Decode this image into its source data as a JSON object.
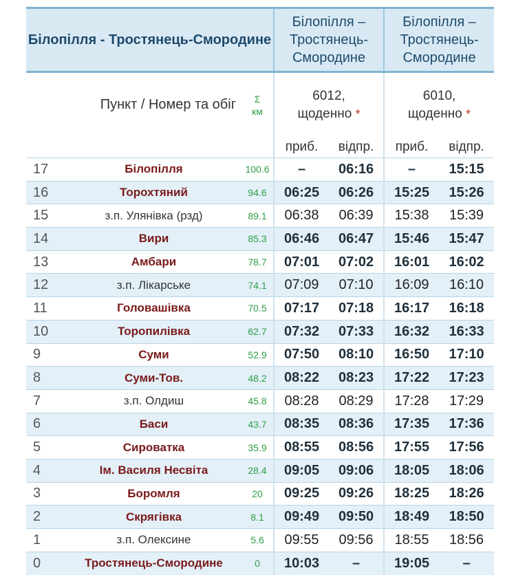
{
  "header": {
    "route": "Білопілля - Тростянець-Смородине",
    "dir1": "Білопілля – Тростянець-Смородине",
    "dir2": "Білопілля – Тростянець-Смородине",
    "punkt": "Пункт / Номер та обіг",
    "sum_symbol": "Σ",
    "sum_unit": "км",
    "train1_num": "6012,",
    "train1_days": "щоденно",
    "train2_num": "6010,",
    "train2_days": "щоденно",
    "star": "*",
    "arr": "приб.",
    "dep": "відпр."
  },
  "rows": [
    {
      "n": "17",
      "name": "Білопілля",
      "km": "100.6",
      "a1": "–",
      "d1": "06:16",
      "a2": "–",
      "d2": "15:15",
      "major": true
    },
    {
      "n": "16",
      "name": "Торохтяний",
      "km": "94.6",
      "a1": "06:25",
      "d1": "06:26",
      "a2": "15:25",
      "d2": "15:26",
      "major": true
    },
    {
      "n": "15",
      "name": "з.п. Улянівка (рзд)",
      "km": "89.1",
      "a1": "06:38",
      "d1": "06:39",
      "a2": "15:38",
      "d2": "15:39",
      "major": false
    },
    {
      "n": "14",
      "name": "Вири",
      "km": "85.3",
      "a1": "06:46",
      "d1": "06:47",
      "a2": "15:46",
      "d2": "15:47",
      "major": true
    },
    {
      "n": "13",
      "name": "Амбари",
      "km": "78.7",
      "a1": "07:01",
      "d1": "07:02",
      "a2": "16:01",
      "d2": "16:02",
      "major": true
    },
    {
      "n": "12",
      "name": "з.п. Лікарське",
      "km": "74.1",
      "a1": "07:09",
      "d1": "07:10",
      "a2": "16:09",
      "d2": "16:10",
      "major": false
    },
    {
      "n": "11",
      "name": "Головашівка",
      "km": "70.5",
      "a1": "07:17",
      "d1": "07:18",
      "a2": "16:17",
      "d2": "16:18",
      "major": true
    },
    {
      "n": "10",
      "name": "Торопилівка",
      "km": "62.7",
      "a1": "07:32",
      "d1": "07:33",
      "a2": "16:32",
      "d2": "16:33",
      "major": true
    },
    {
      "n": "9",
      "name": "Суми",
      "km": "52.9",
      "a1": "07:50",
      "d1": "08:10",
      "a2": "16:50",
      "d2": "17:10",
      "major": true
    },
    {
      "n": "8",
      "name": "Суми-Тов.",
      "km": "48.2",
      "a1": "08:22",
      "d1": "08:23",
      "a2": "17:22",
      "d2": "17:23",
      "major": true
    },
    {
      "n": "7",
      "name": "з.п. Олдиш",
      "km": "45.8",
      "a1": "08:28",
      "d1": "08:29",
      "a2": "17:28",
      "d2": "17:29",
      "major": false
    },
    {
      "n": "6",
      "name": "Баси",
      "km": "43.7",
      "a1": "08:35",
      "d1": "08:36",
      "a2": "17:35",
      "d2": "17:36",
      "major": true
    },
    {
      "n": "5",
      "name": "Сироватка",
      "km": "35.9",
      "a1": "08:55",
      "d1": "08:56",
      "a2": "17:55",
      "d2": "17:56",
      "major": true
    },
    {
      "n": "4",
      "name": "Ім. Василя Несвіта",
      "km": "28.4",
      "a1": "09:05",
      "d1": "09:06",
      "a2": "18:05",
      "d2": "18:06",
      "major": true
    },
    {
      "n": "3",
      "name": "Боромля",
      "km": "20",
      "a1": "09:25",
      "d1": "09:26",
      "a2": "18:25",
      "d2": "18:26",
      "major": true
    },
    {
      "n": "2",
      "name": "Скрягівка",
      "km": "8.1",
      "a1": "09:49",
      "d1": "09:50",
      "a2": "18:49",
      "d2": "18:50",
      "major": true
    },
    {
      "n": "1",
      "name": "з.п. Олексине",
      "km": "5.6",
      "a1": "09:55",
      "d1": "09:56",
      "a2": "18:55",
      "d2": "18:56",
      "major": false
    },
    {
      "n": "0",
      "name": "Тростянець-Смородине",
      "km": "0",
      "a1": "10:03",
      "d1": "–",
      "a2": "19:05",
      "d2": "–",
      "major": true
    }
  ]
}
